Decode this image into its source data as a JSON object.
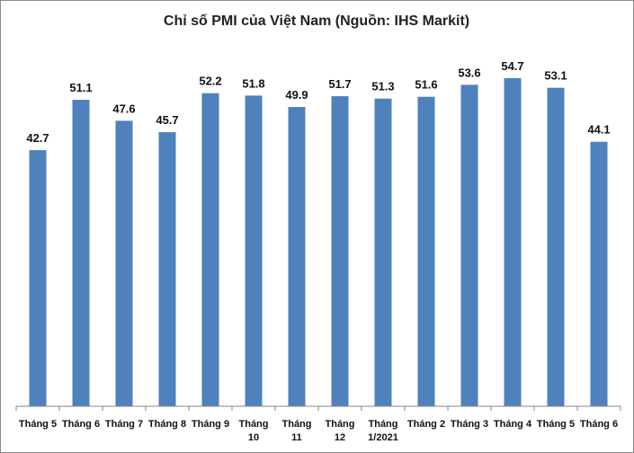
{
  "chart_data": {
    "type": "bar",
    "title": "Chỉ số PMI của Việt Nam (Nguồn: IHS Markit)",
    "xlabel": "",
    "ylabel": "",
    "categories": [
      "Tháng 5",
      "Tháng 6",
      "Tháng 7",
      "Tháng 8",
      "Tháng 9",
      "Tháng 10",
      "Tháng 11",
      "Tháng 12",
      "Tháng 1/2021",
      "Tháng 2",
      "Tháng 3",
      "Tháng 4",
      "Tháng 5",
      "Tháng 6"
    ],
    "values": [
      42.7,
      51.1,
      47.6,
      45.7,
      52.2,
      51.8,
      49.9,
      51.7,
      51.3,
      51.6,
      53.6,
      54.7,
      53.1,
      44.1
    ],
    "data_labels": [
      "42.7",
      "51.1",
      "47.6",
      "45.7",
      "52.2",
      "51.8",
      "49.9",
      "51.7",
      "51.3",
      "51.6",
      "53.6",
      "54.7",
      "53.1",
      "44.1"
    ],
    "ylim": [
      0,
      60
    ],
    "grid": false,
    "legend": "none",
    "bar_color": "#4f81bd",
    "axis_color": "#868686"
  }
}
